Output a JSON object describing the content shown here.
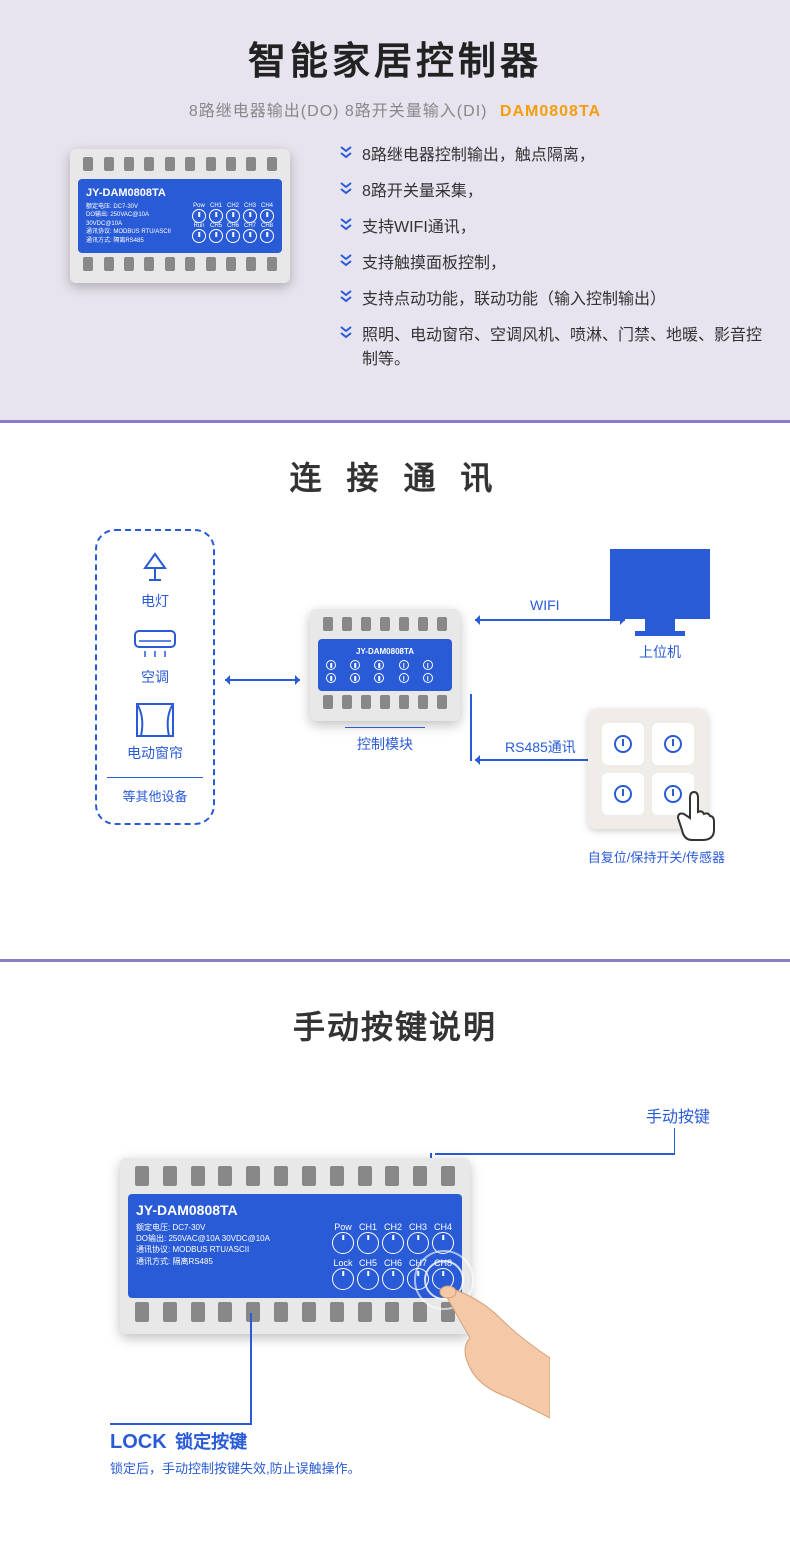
{
  "colors": {
    "accent": "#2a5bd7",
    "orange": "#f59e0b",
    "bg1": "#e8e4ef",
    "divider": "#8b7cc7"
  },
  "section1": {
    "title": "智能家居控制器",
    "subtitle_grey": "8路继电器输出(DO) 8路开关量输入(DI)",
    "model": "DAM0808TA",
    "features": [
      "8路继电器控制输出，触点隔离，",
      "8路开关量采集，",
      "支持WIFI通讯，",
      "支持触摸面板控制，",
      "支持点动功能，联动功能（输入控制输出）",
      "照明、电动窗帘、空调风机、喷淋、门禁、地暖、影音控制等。"
    ]
  },
  "device": {
    "model": "JY-DAM0808TA",
    "info_lines": [
      "额定电压: DC7-30V",
      "DO输出: 250VAC@10A 30VDC@10A",
      "通讯协议: MODBUS RTU/ASCII",
      "通讯方式: 隔离RS485"
    ],
    "row1_labels": [
      "Pow",
      "CH1",
      "CH2",
      "CH3",
      "CH4"
    ],
    "row2_labels": [
      "Run",
      "CH5",
      "CH6",
      "CH7",
      "CH8"
    ],
    "row3_label": "Lock"
  },
  "section2": {
    "title": "连 接 通 讯",
    "devices": {
      "items": [
        "电灯",
        "空调",
        "电动窗帘"
      ],
      "footer": "等其他设备"
    },
    "ctrl_label": "控制模块",
    "monitor_label": "上位机",
    "wifi_label": "WIFI",
    "rs485_label": "RS485通讯",
    "switch_label": "自复位/保持开关/传感器"
  },
  "section3": {
    "title": "手动按键说明",
    "manual_btn": "手动按键",
    "lock_title_en": "LOCK",
    "lock_title_cn": "锁定按键",
    "lock_desc": "锁定后，手动控制按键失效,防止误触操作。"
  }
}
